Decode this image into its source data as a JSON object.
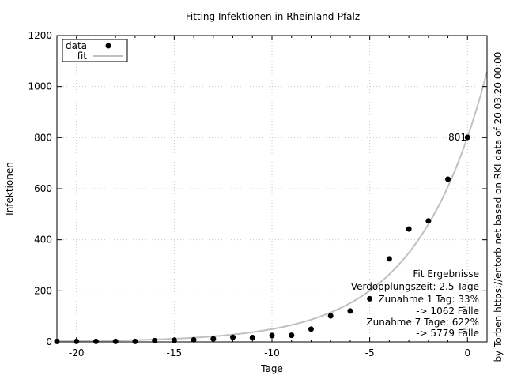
{
  "chart_data": {
    "type": "scatter",
    "title": "Fitting Infektionen in Rheinland-Pfalz",
    "xlabel": "Tage",
    "ylabel": "Infektionen",
    "right_label": "by Torben https://entorb.net based on RKI data of 20.03.20 00:00",
    "xlim": [
      -21,
      1
    ],
    "ylim": [
      0,
      1200
    ],
    "xticks": [
      -20,
      -15,
      -10,
      -5,
      0
    ],
    "yticks": [
      0,
      200,
      400,
      600,
      800,
      1000,
      1200
    ],
    "grid": true,
    "legend": {
      "position": "top-left",
      "entries": [
        "data",
        "fit"
      ]
    },
    "series": [
      {
        "name": "data",
        "style": "points",
        "color": "#000000",
        "x": [
          -21,
          -20,
          -19,
          -18,
          -17,
          -16,
          -15,
          -14,
          -13,
          -12,
          -11,
          -10,
          -9,
          -8,
          -7,
          -6,
          -5,
          -4,
          -3,
          -2,
          -1,
          0
        ],
        "y": [
          2,
          2,
          2,
          2,
          2,
          5,
          6,
          8,
          12,
          18,
          17,
          25,
          26,
          50,
          102,
          121,
          169,
          325,
          442,
          474,
          637,
          801
        ]
      },
      {
        "name": "fit",
        "style": "line",
        "color": "#c0c0c0",
        "model": "exponential",
        "a": 802,
        "doubling_days": 2.5
      }
    ],
    "annotations": {
      "last_point_label": "801",
      "fit_results": [
        "Fit Ergebnisse",
        "Verdopplungszeit: 2.5 Tage",
        "Zunahme 1 Tag: 33%",
        "-> 1062 Fälle",
        "Zunahme 7 Tage: 622%",
        "-> 5779 Fälle"
      ]
    }
  }
}
